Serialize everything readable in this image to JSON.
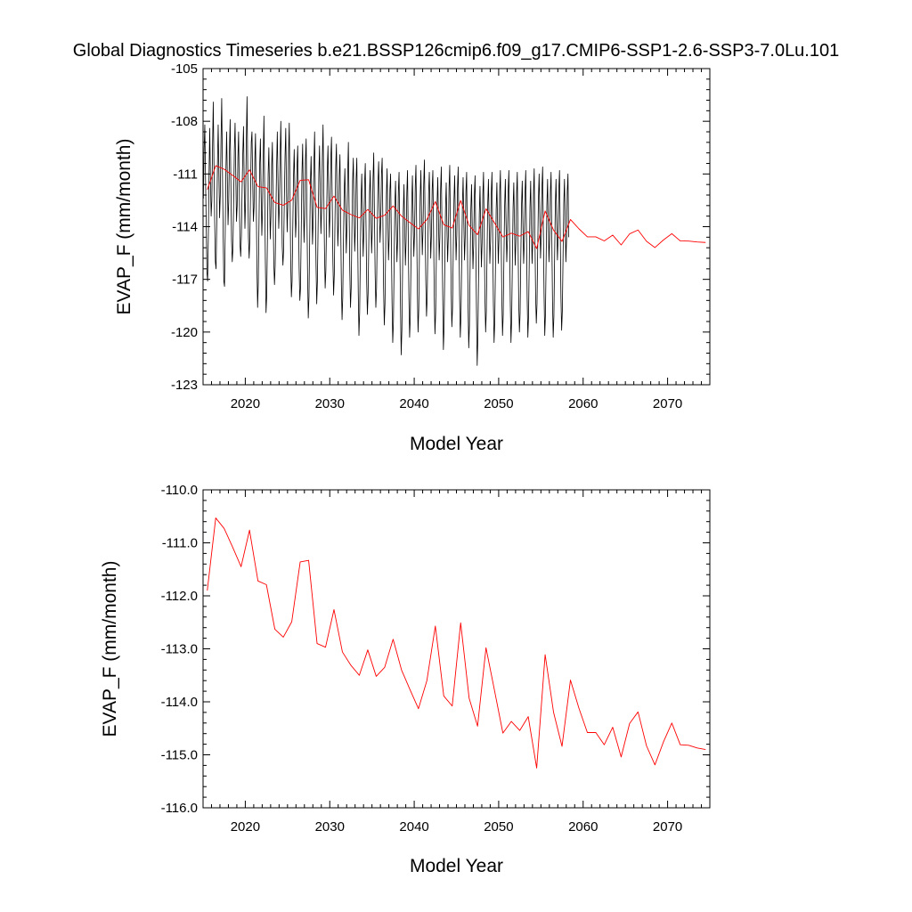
{
  "figure": {
    "title": "Global Diagnostics Timeseries b.e21.BSSP126cmip6.f09_g17.CMIP6-SSP1-2.6-SSP3-7.0Lu.101"
  },
  "chart_data": [
    {
      "type": "line",
      "xlabel": "Model Year",
      "ylabel": "EVAP_F (mm/month)",
      "xlim": [
        2015,
        2075
      ],
      "ylim": [
        -123,
        -105
      ],
      "xticks": [
        2020,
        2030,
        2040,
        2050,
        2060,
        2070
      ],
      "xtick_labels": [
        "2020",
        "2030",
        "2040",
        "2050",
        "2060",
        "2070"
      ],
      "yticks": [
        -105,
        -108,
        -111,
        -114,
        -117,
        -120,
        -123
      ],
      "ytick_labels": [
        "-105",
        "-108",
        "-111",
        "-114",
        "-117",
        "-120",
        "-123"
      ],
      "grid": false,
      "series": [
        {
          "color": "#000000",
          "style": "monthly",
          "x_start": 2015.04,
          "x_step": 0.08333,
          "values": [
            -112.4,
            -109.6,
            -108.2,
            -111.2,
            -113.9,
            -116.6,
            -117.1,
            -114.6,
            -111.0,
            -108.4,
            -111.3,
            -113.4,
            -112.5,
            -109.4,
            -106.9,
            -110.4,
            -113.6,
            -116.0,
            -116.4,
            -113.7,
            -110.4,
            -108.2,
            -110.8,
            -113.5,
            -112.2,
            -109.1,
            -106.7,
            -110.6,
            -114.2,
            -117.1,
            -117.4,
            -114.3,
            -110.8,
            -108.6,
            -111.1,
            -113.9,
            -112.6,
            -109.7,
            -107.9,
            -111.4,
            -114.8,
            -116.0,
            -115.2,
            -112.4,
            -109.6,
            -108.1,
            -111.0,
            -113.7,
            -112.8,
            -110.1,
            -108.6,
            -111.9,
            -115.0,
            -115.7,
            -114.5,
            -111.9,
            -109.8,
            -108.3,
            -111.6,
            -114.1,
            -112.4,
            -109.1,
            -106.6,
            -110.7,
            -114.6,
            -115.8,
            -114.7,
            -112.0,
            -109.2,
            -108.6,
            -111.3,
            -113.7,
            -112.9,
            -110.3,
            -108.7,
            -112.2,
            -116.1,
            -118.6,
            -117.2,
            -113.8,
            -110.4,
            -109.0,
            -112.0,
            -114.5,
            -113.0,
            -110.1,
            -107.7,
            -111.6,
            -115.8,
            -118.9,
            -117.9,
            -114.6,
            -111.0,
            -109.5,
            -112.1,
            -114.7,
            -113.4,
            -110.5,
            -109.2,
            -112.7,
            -116.0,
            -117.3,
            -116.2,
            -113.2,
            -110.6,
            -108.6,
            -111.3,
            -114.1,
            -112.8,
            -110.0,
            -108.0,
            -111.6,
            -115.1,
            -116.2,
            -115.3,
            -112.4,
            -110.0,
            -108.4,
            -111.8,
            -114.3,
            -112.8,
            -109.8,
            -108.1,
            -111.8,
            -115.9,
            -118.0,
            -117.1,
            -114.1,
            -111.2,
            -109.6,
            -112.0,
            -114.6,
            -113.5,
            -110.6,
            -109.4,
            -112.8,
            -116.3,
            -118.2,
            -117.5,
            -114.3,
            -111.0,
            -109.3,
            -112.3,
            -114.9,
            -113.4,
            -110.2,
            -109.0,
            -112.9,
            -116.7,
            -119.2,
            -118.0,
            -114.8,
            -111.5,
            -110.0,
            -112.6,
            -115.0,
            -113.6,
            -110.5,
            -108.6,
            -112.2,
            -116.1,
            -118.4,
            -117.1,
            -113.9,
            -111.0,
            -109.4,
            -112.1,
            -114.4,
            -113.0,
            -110.1,
            -108.2,
            -111.7,
            -115.3,
            -117.5,
            -116.5,
            -113.6,
            -110.8,
            -109.4,
            -112.2,
            -114.6,
            -113.1,
            -110.2,
            -108.9,
            -112.4,
            -116.0,
            -117.9,
            -116.7,
            -113.5,
            -110.6,
            -109.3,
            -112.5,
            -115.1,
            -113.9,
            -111.1,
            -109.9,
            -113.5,
            -117.2,
            -119.3,
            -118.0,
            -114.9,
            -112.0,
            -110.7,
            -113.2,
            -115.5,
            -113.9,
            -111.0,
            -109.2,
            -112.9,
            -116.5,
            -118.6,
            -117.5,
            -114.3,
            -111.4,
            -110.1,
            -112.9,
            -115.4,
            -114.0,
            -111.3,
            -110.1,
            -113.9,
            -117.7,
            -120.2,
            -118.9,
            -115.6,
            -112.5,
            -111.0,
            -113.4,
            -115.7,
            -114.3,
            -111.6,
            -110.4,
            -113.8,
            -117.2,
            -119.0,
            -117.8,
            -114.9,
            -112.1,
            -110.8,
            -113.3,
            -115.5,
            -114.1,
            -111.3,
            -109.8,
            -113.2,
            -116.7,
            -118.6,
            -117.5,
            -114.5,
            -111.6,
            -110.3,
            -112.7,
            -114.9,
            -113.6,
            -111.0,
            -110.1,
            -113.7,
            -117.5,
            -119.6,
            -118.4,
            -115.1,
            -112.2,
            -110.7,
            -113.4,
            -115.9,
            -114.6,
            -111.9,
            -111.0,
            -114.6,
            -118.3,
            -120.6,
            -119.4,
            -116.0,
            -112.8,
            -111.4,
            -113.8,
            -116.0,
            -114.7,
            -112.0,
            -110.9,
            -114.5,
            -118.5,
            -121.3,
            -119.9,
            -116.4,
            -113.2,
            -111.6,
            -114.0,
            -116.2,
            -114.8,
            -112.1,
            -110.8,
            -114.3,
            -118.0,
            -120.3,
            -119.1,
            -115.8,
            -112.7,
            -111.1,
            -113.5,
            -115.7,
            -114.4,
            -111.7,
            -110.5,
            -114.0,
            -117.7,
            -120.0,
            -118.7,
            -115.4,
            -112.3,
            -110.8,
            -113.3,
            -115.6,
            -114.2,
            -111.6,
            -110.2,
            -113.6,
            -117.1,
            -119.1,
            -118.0,
            -114.9,
            -112.1,
            -110.9,
            -113.4,
            -115.8,
            -114.5,
            -111.9,
            -110.8,
            -114.2,
            -117.9,
            -120.1,
            -118.9,
            -115.7,
            -112.7,
            -111.2,
            -113.6,
            -115.9,
            -114.6,
            -111.9,
            -110.6,
            -114.1,
            -117.8,
            -121.0,
            -119.7,
            -116.2,
            -113.0,
            -111.5,
            -113.9,
            -116.0,
            -114.6,
            -111.8,
            -110.5,
            -114.0,
            -117.6,
            -119.7,
            -118.6,
            -115.4,
            -112.5,
            -111.1,
            -113.6,
            -115.9,
            -114.5,
            -111.8,
            -110.6,
            -114.1,
            -117.9,
            -120.3,
            -119.1,
            -115.9,
            -112.8,
            -111.2,
            -113.6,
            -115.9,
            -114.6,
            -112.0,
            -110.9,
            -114.5,
            -118.3,
            -120.9,
            -119.6,
            -116.2,
            -113.0,
            -111.6,
            -114.1,
            -116.4,
            -115.0,
            -112.2,
            -111.1,
            -114.8,
            -118.8,
            -121.9,
            -120.3,
            -116.7,
            -113.3,
            -111.7,
            -114.1,
            -116.3,
            -114.9,
            -112.2,
            -110.9,
            -114.4,
            -118.0,
            -120.0,
            -118.8,
            -115.6,
            -112.7,
            -111.3,
            -113.8,
            -116.1,
            -114.8,
            -112.1,
            -110.9,
            -114.5,
            -118.3,
            -120.6,
            -119.4,
            -116.1,
            -113.0,
            -111.5,
            -113.9,
            -116.1,
            -114.7,
            -112.0,
            -110.8,
            -114.3,
            -118.0,
            -120.2,
            -119.0,
            -115.8,
            -112.8,
            -111.3,
            -113.8,
            -116.0,
            -114.7,
            -112.0,
            -110.8,
            -114.4,
            -118.2,
            -120.6,
            -119.3,
            -116.0,
            -112.9,
            -111.5,
            -113.9,
            -116.2,
            -114.8,
            -112.1,
            -110.9,
            -114.5,
            -118.3,
            -120.0,
            -118.9,
            -115.7,
            -112.8,
            -111.4,
            -113.9,
            -116.1,
            -114.8,
            -112.1,
            -110.8,
            -114.3,
            -118.0,
            -120.3,
            -119.1,
            -115.9,
            -112.9,
            -111.4,
            -113.9,
            -116.1,
            -114.8,
            -112.1,
            -110.7,
            -114.3,
            -117.9,
            -119.5,
            -118.4,
            -115.3,
            -112.4,
            -111.0,
            -113.5,
            -115.8,
            -114.5,
            -111.8,
            -110.6,
            -114.1,
            -117.8,
            -120.2,
            -119.0,
            -115.8,
            -112.8,
            -111.3,
            -113.8,
            -116.0,
            -114.7,
            -112.0,
            -110.9,
            -114.4,
            -118.2,
            -120.3,
            -119.1,
            -115.8,
            -112.8,
            -111.3,
            -113.7,
            -115.9,
            -114.6,
            -111.9,
            -110.8,
            -114.3,
            -118.0,
            -119.9,
            -118.8,
            -115.7,
            -112.7,
            -111.3,
            -113.7,
            -116.0,
            -114.7,
            -112.0,
            -111.0,
            -114.6
          ]
        },
        {
          "color": "#ff0000",
          "style": "annual",
          "x": [
            2015.5,
            2016.5,
            2017.5,
            2018.5,
            2019.5,
            2020.5,
            2021.5,
            2022.5,
            2023.5,
            2024.5,
            2025.5,
            2026.5,
            2027.5,
            2028.5,
            2029.5,
            2030.5,
            2031.5,
            2032.5,
            2033.5,
            2034.5,
            2035.5,
            2036.5,
            2037.5,
            2038.5,
            2039.5,
            2040.5,
            2041.5,
            2042.5,
            2043.5,
            2044.5,
            2045.5,
            2046.5,
            2047.5,
            2048.5,
            2049.5,
            2050.5,
            2051.5,
            2052.5,
            2053.5,
            2054.5,
            2055.5,
            2056.5,
            2057.5,
            2058.5,
            2059.5,
            2060.5,
            2061.5,
            2062.5,
            2063.5,
            2064.5,
            2065.5,
            2066.5,
            2067.5,
            2068.5,
            2069.5,
            2070.5,
            2071.5,
            2072.5,
            2073.5,
            2074.5
          ],
          "values": [
            -111.9,
            -110.53,
            -110.73,
            -111.08,
            -111.45,
            -110.76,
            -111.72,
            -111.79,
            -112.63,
            -112.78,
            -112.49,
            -111.36,
            -111.33,
            -112.9,
            -112.97,
            -112.26,
            -113.06,
            -113.31,
            -113.5,
            -113.02,
            -113.52,
            -113.35,
            -112.82,
            -113.4,
            -113.77,
            -114.13,
            -113.6,
            -112.57,
            -113.89,
            -114.08,
            -112.51,
            -113.93,
            -114.46,
            -112.98,
            -113.78,
            -114.59,
            -114.37,
            -114.54,
            -114.28,
            -115.25,
            -113.11,
            -114.2,
            -114.84,
            -113.59,
            -114.12,
            -114.58,
            -114.58,
            -114.81,
            -114.48,
            -115.04,
            -114.41,
            -114.19,
            -114.83,
            -115.19,
            -114.76,
            -114.4,
            -114.81,
            -114.82,
            -114.87,
            -114.9
          ]
        }
      ]
    },
    {
      "type": "line",
      "xlabel": "Model Year",
      "ylabel": "EVAP_F (mm/month)",
      "xlim": [
        2015,
        2075
      ],
      "ylim": [
        -116,
        -110
      ],
      "xticks": [
        2020,
        2030,
        2040,
        2050,
        2060,
        2070
      ],
      "xtick_labels": [
        "2020",
        "2030",
        "2040",
        "2050",
        "2060",
        "2070"
      ],
      "yticks": [
        -110,
        -111,
        -112,
        -113,
        -114,
        -115,
        -116
      ],
      "ytick_labels": [
        "-110.0",
        "-111.0",
        "-112.0",
        "-113.0",
        "-114.0",
        "-115.0",
        "-116.0"
      ],
      "grid": false,
      "series": [
        {
          "color": "#ff0000",
          "style": "annual",
          "x": [
            2015.5,
            2016.5,
            2017.5,
            2018.5,
            2019.5,
            2020.5,
            2021.5,
            2022.5,
            2023.5,
            2024.5,
            2025.5,
            2026.5,
            2027.5,
            2028.5,
            2029.5,
            2030.5,
            2031.5,
            2032.5,
            2033.5,
            2034.5,
            2035.5,
            2036.5,
            2037.5,
            2038.5,
            2039.5,
            2040.5,
            2041.5,
            2042.5,
            2043.5,
            2044.5,
            2045.5,
            2046.5,
            2047.5,
            2048.5,
            2049.5,
            2050.5,
            2051.5,
            2052.5,
            2053.5,
            2054.5,
            2055.5,
            2056.5,
            2057.5,
            2058.5,
            2059.5,
            2060.5,
            2061.5,
            2062.5,
            2063.5,
            2064.5,
            2065.5,
            2066.5,
            2067.5,
            2068.5,
            2069.5,
            2070.5,
            2071.5,
            2072.5,
            2073.5,
            2074.5
          ],
          "values": [
            -111.9,
            -110.53,
            -110.73,
            -111.08,
            -111.45,
            -110.76,
            -111.72,
            -111.79,
            -112.63,
            -112.78,
            -112.49,
            -111.36,
            -111.33,
            -112.9,
            -112.97,
            -112.26,
            -113.06,
            -113.31,
            -113.5,
            -113.02,
            -113.52,
            -113.35,
            -112.82,
            -113.4,
            -113.77,
            -114.13,
            -113.6,
            -112.57,
            -113.89,
            -114.08,
            -112.51,
            -113.93,
            -114.46,
            -112.98,
            -113.78,
            -114.59,
            -114.37,
            -114.54,
            -114.28,
            -115.25,
            -113.11,
            -114.2,
            -114.84,
            -113.59,
            -114.12,
            -114.58,
            -114.58,
            -114.81,
            -114.48,
            -115.04,
            -114.41,
            -114.19,
            -114.83,
            -115.19,
            -114.76,
            -114.4,
            -114.81,
            -114.82,
            -114.87,
            -114.9
          ]
        }
      ]
    }
  ]
}
